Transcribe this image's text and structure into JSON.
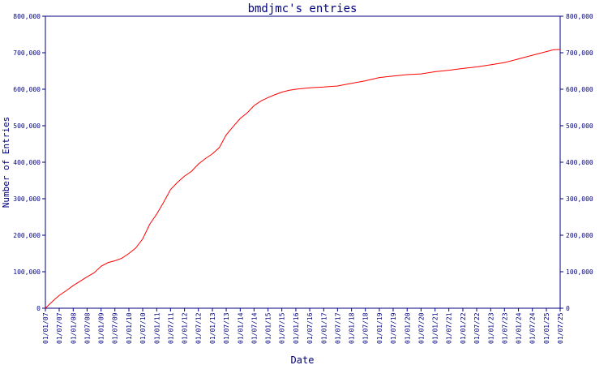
{
  "chart_data": {
    "type": "line",
    "title": "bmdjmc's entries",
    "xlabel": "Date",
    "ylabel": "Number of Entries",
    "x_tick_labels": [
      "01/01/07",
      "01/07/07",
      "01/01/08",
      "01/07/08",
      "01/01/09",
      "01/07/09",
      "01/01/10",
      "01/07/10",
      "01/01/11",
      "01/07/11",
      "01/01/12",
      "01/07/12",
      "01/01/13",
      "01/07/13",
      "01/01/14",
      "01/07/14",
      "01/01/15",
      "01/07/15",
      "01/01/16",
      "01/07/16",
      "01/01/17",
      "01/07/17",
      "01/01/18",
      "01/07/18",
      "01/01/19",
      "01/07/19",
      "01/01/20",
      "01/07/20",
      "01/01/21",
      "01/07/21",
      "01/01/22",
      "01/07/22",
      "01/01/23",
      "01/07/23",
      "01/01/24",
      "01/07/24",
      "01/01/25",
      "01/07/25"
    ],
    "y_tick_labels": [
      "0",
      "100,000",
      "200,000",
      "300,000",
      "400,000",
      "500,000",
      "600,000",
      "700,000",
      "800,000"
    ],
    "ylim": [
      0,
      800000
    ],
    "grid": false,
    "line_color": "#ff0000",
    "axis_color": "#000080",
    "title_color": "#000080",
    "series": [
      {
        "x": [
          "01/01/07",
          "01/03/07",
          "01/05/07",
          "01/07/07",
          "01/10/07",
          "01/01/08",
          "01/04/08",
          "01/07/08",
          "01/10/08",
          "01/01/09",
          "01/04/09",
          "01/07/09",
          "01/10/09",
          "01/01/10",
          "01/04/10",
          "01/07/10",
          "01/10/10",
          "01/01/11",
          "01/04/11",
          "01/07/11",
          "01/10/11",
          "01/01/12",
          "01/04/12",
          "01/07/12",
          "01/10/12",
          "01/01/13",
          "01/04/13",
          "01/07/13",
          "01/10/13",
          "01/01/14",
          "01/04/14",
          "01/07/14",
          "01/10/14",
          "01/01/15",
          "01/04/15",
          "01/07/15",
          "01/10/15",
          "01/01/16",
          "01/07/16",
          "01/01/17",
          "01/07/17",
          "01/01/18",
          "01/07/18",
          "01/01/19",
          "01/07/19",
          "01/01/20",
          "01/07/20",
          "01/01/21",
          "01/07/21",
          "01/01/22",
          "01/07/22",
          "01/01/23",
          "01/07/23",
          "01/01/24",
          "01/07/24",
          "01/01/25",
          "01/04/25",
          "01/07/25"
        ],
        "y": [
          0,
          12000,
          24000,
          35000,
          48000,
          62000,
          74000,
          86000,
          97000,
          115000,
          125000,
          130000,
          137000,
          150000,
          165000,
          190000,
          230000,
          258000,
          290000,
          325000,
          345000,
          362000,
          375000,
          395000,
          410000,
          423000,
          440000,
          475000,
          498000,
          520000,
          535000,
          555000,
          568000,
          577000,
          585000,
          592000,
          597000,
          600000,
          604000,
          606000,
          609000,
          616000,
          623000,
          632000,
          636000,
          640000,
          642000,
          648000,
          652000,
          657000,
          661000,
          667000,
          673000,
          683000,
          693000,
          703000,
          708000,
          709000
        ]
      }
    ]
  }
}
